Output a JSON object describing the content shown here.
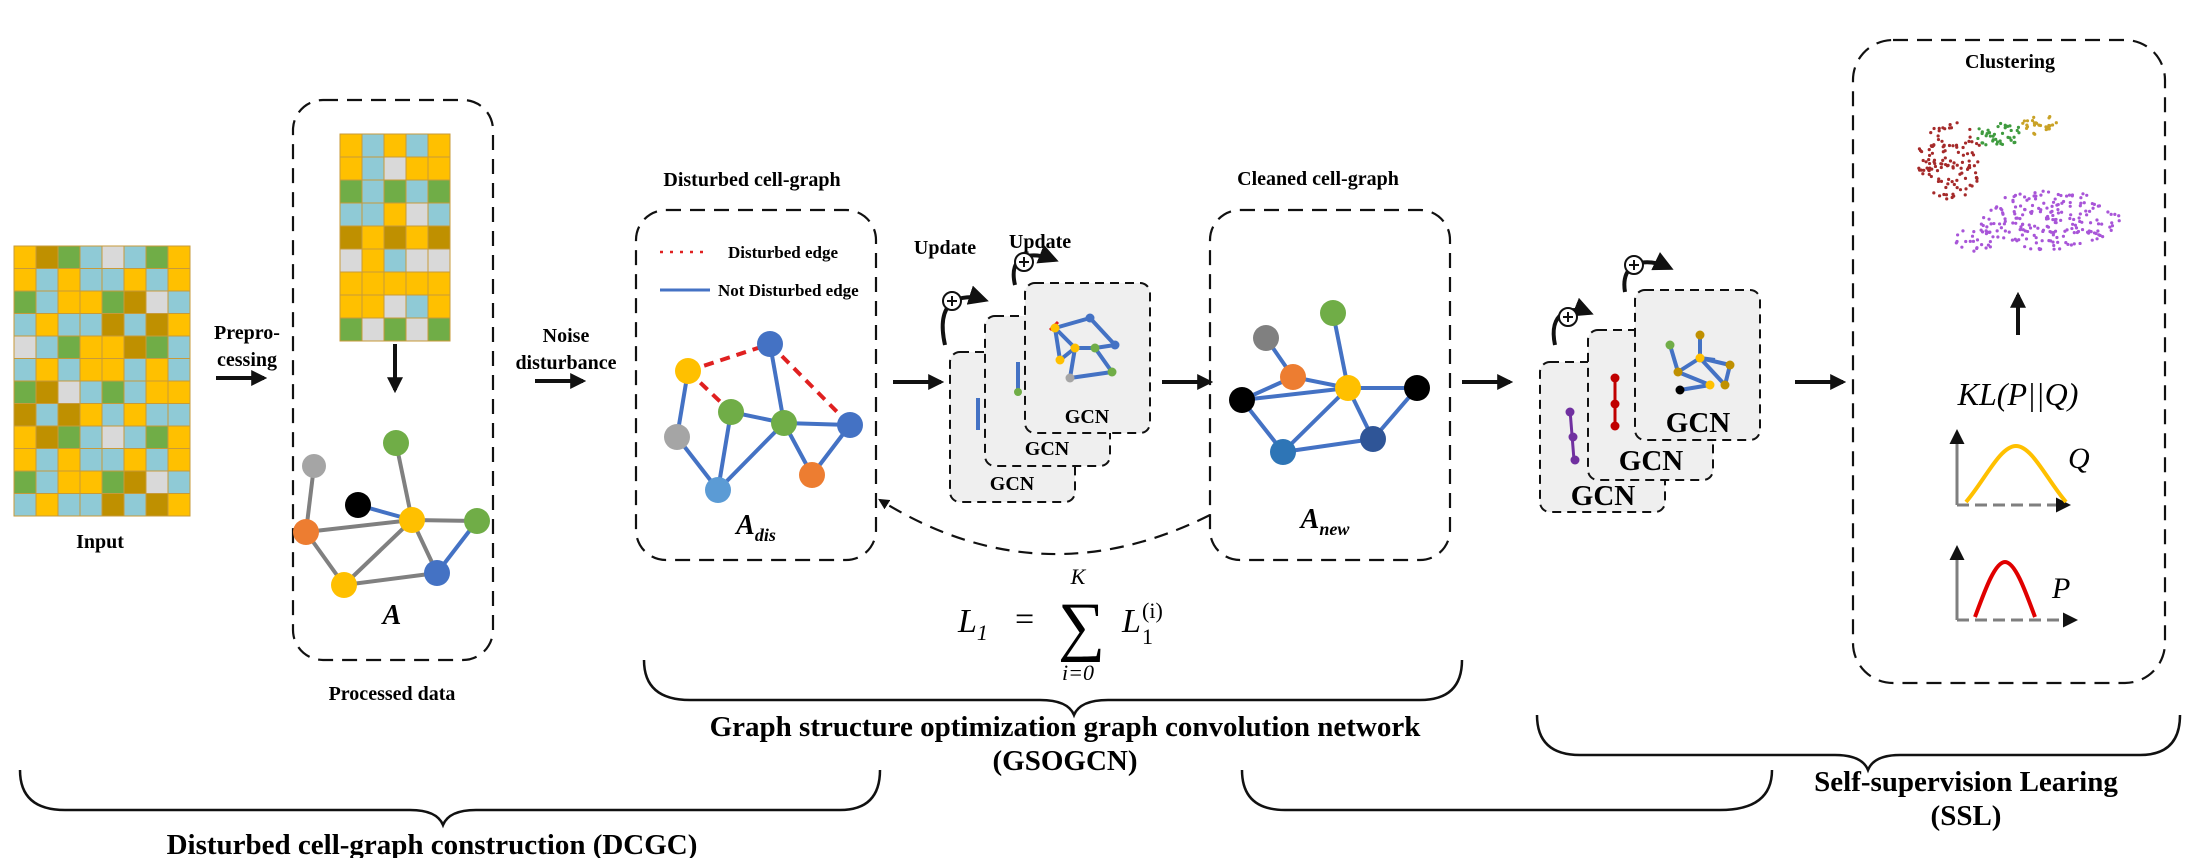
{
  "labels": {
    "input": "Input",
    "preprocessing_1": "Prepro-",
    "preprocessing_2": "cessing",
    "processed_data": "Processed data",
    "matrix_a": "A",
    "noise_1": "Noise",
    "noise_2": "disturbance",
    "disturbed_graph_title": "Disturbed cell-graph",
    "legend_disturbed": "Disturbed edge",
    "legend_not_disturbed": "Not Disturbed edge",
    "a_dis_main": "A",
    "a_dis_sub": "dis",
    "update_1": "Update",
    "update_2": "Update",
    "gcn": "GCN",
    "cleaned_graph_title": "Cleaned cell-graph",
    "a_new_main": "A",
    "a_new_sub": "new",
    "loss_lhs": "L",
    "loss_lhs_sub": "1",
    "loss_eq": "=",
    "loss_sum": "∑",
    "loss_upper": "K",
    "loss_lower": "i=0",
    "loss_term": "L",
    "loss_term_sup": "(i)",
    "loss_term_sub": "1",
    "clustering_title": "Clustering",
    "kl": "KL(P||Q)",
    "q_label": "Q",
    "p_label": "P",
    "gsogcn_1": "Graph structure optimization graph convolution network",
    "gsogcn_2": "(GSOGCN)",
    "ssl_1": "Self-supervision Learing",
    "ssl_2": "(SSL)",
    "dcgc": "Disturbed cell-graph construction (DCGC)"
  },
  "colors": {
    "yellow": "#ffc000",
    "light_blue": "#8fcad6",
    "green": "#70ad47",
    "olive": "#bf9000",
    "light_gray": "#d9d9d9",
    "node_blue": "#4472c4",
    "node_orange": "#ed7d31",
    "node_gray": "#a5a5a5",
    "disturbed_edge": "#e02020",
    "cluster_red": "#a52a2a",
    "cluster_green": "#3f9b3f",
    "cluster_purple": "#a855d8",
    "cluster_gold": "#c9a227"
  }
}
